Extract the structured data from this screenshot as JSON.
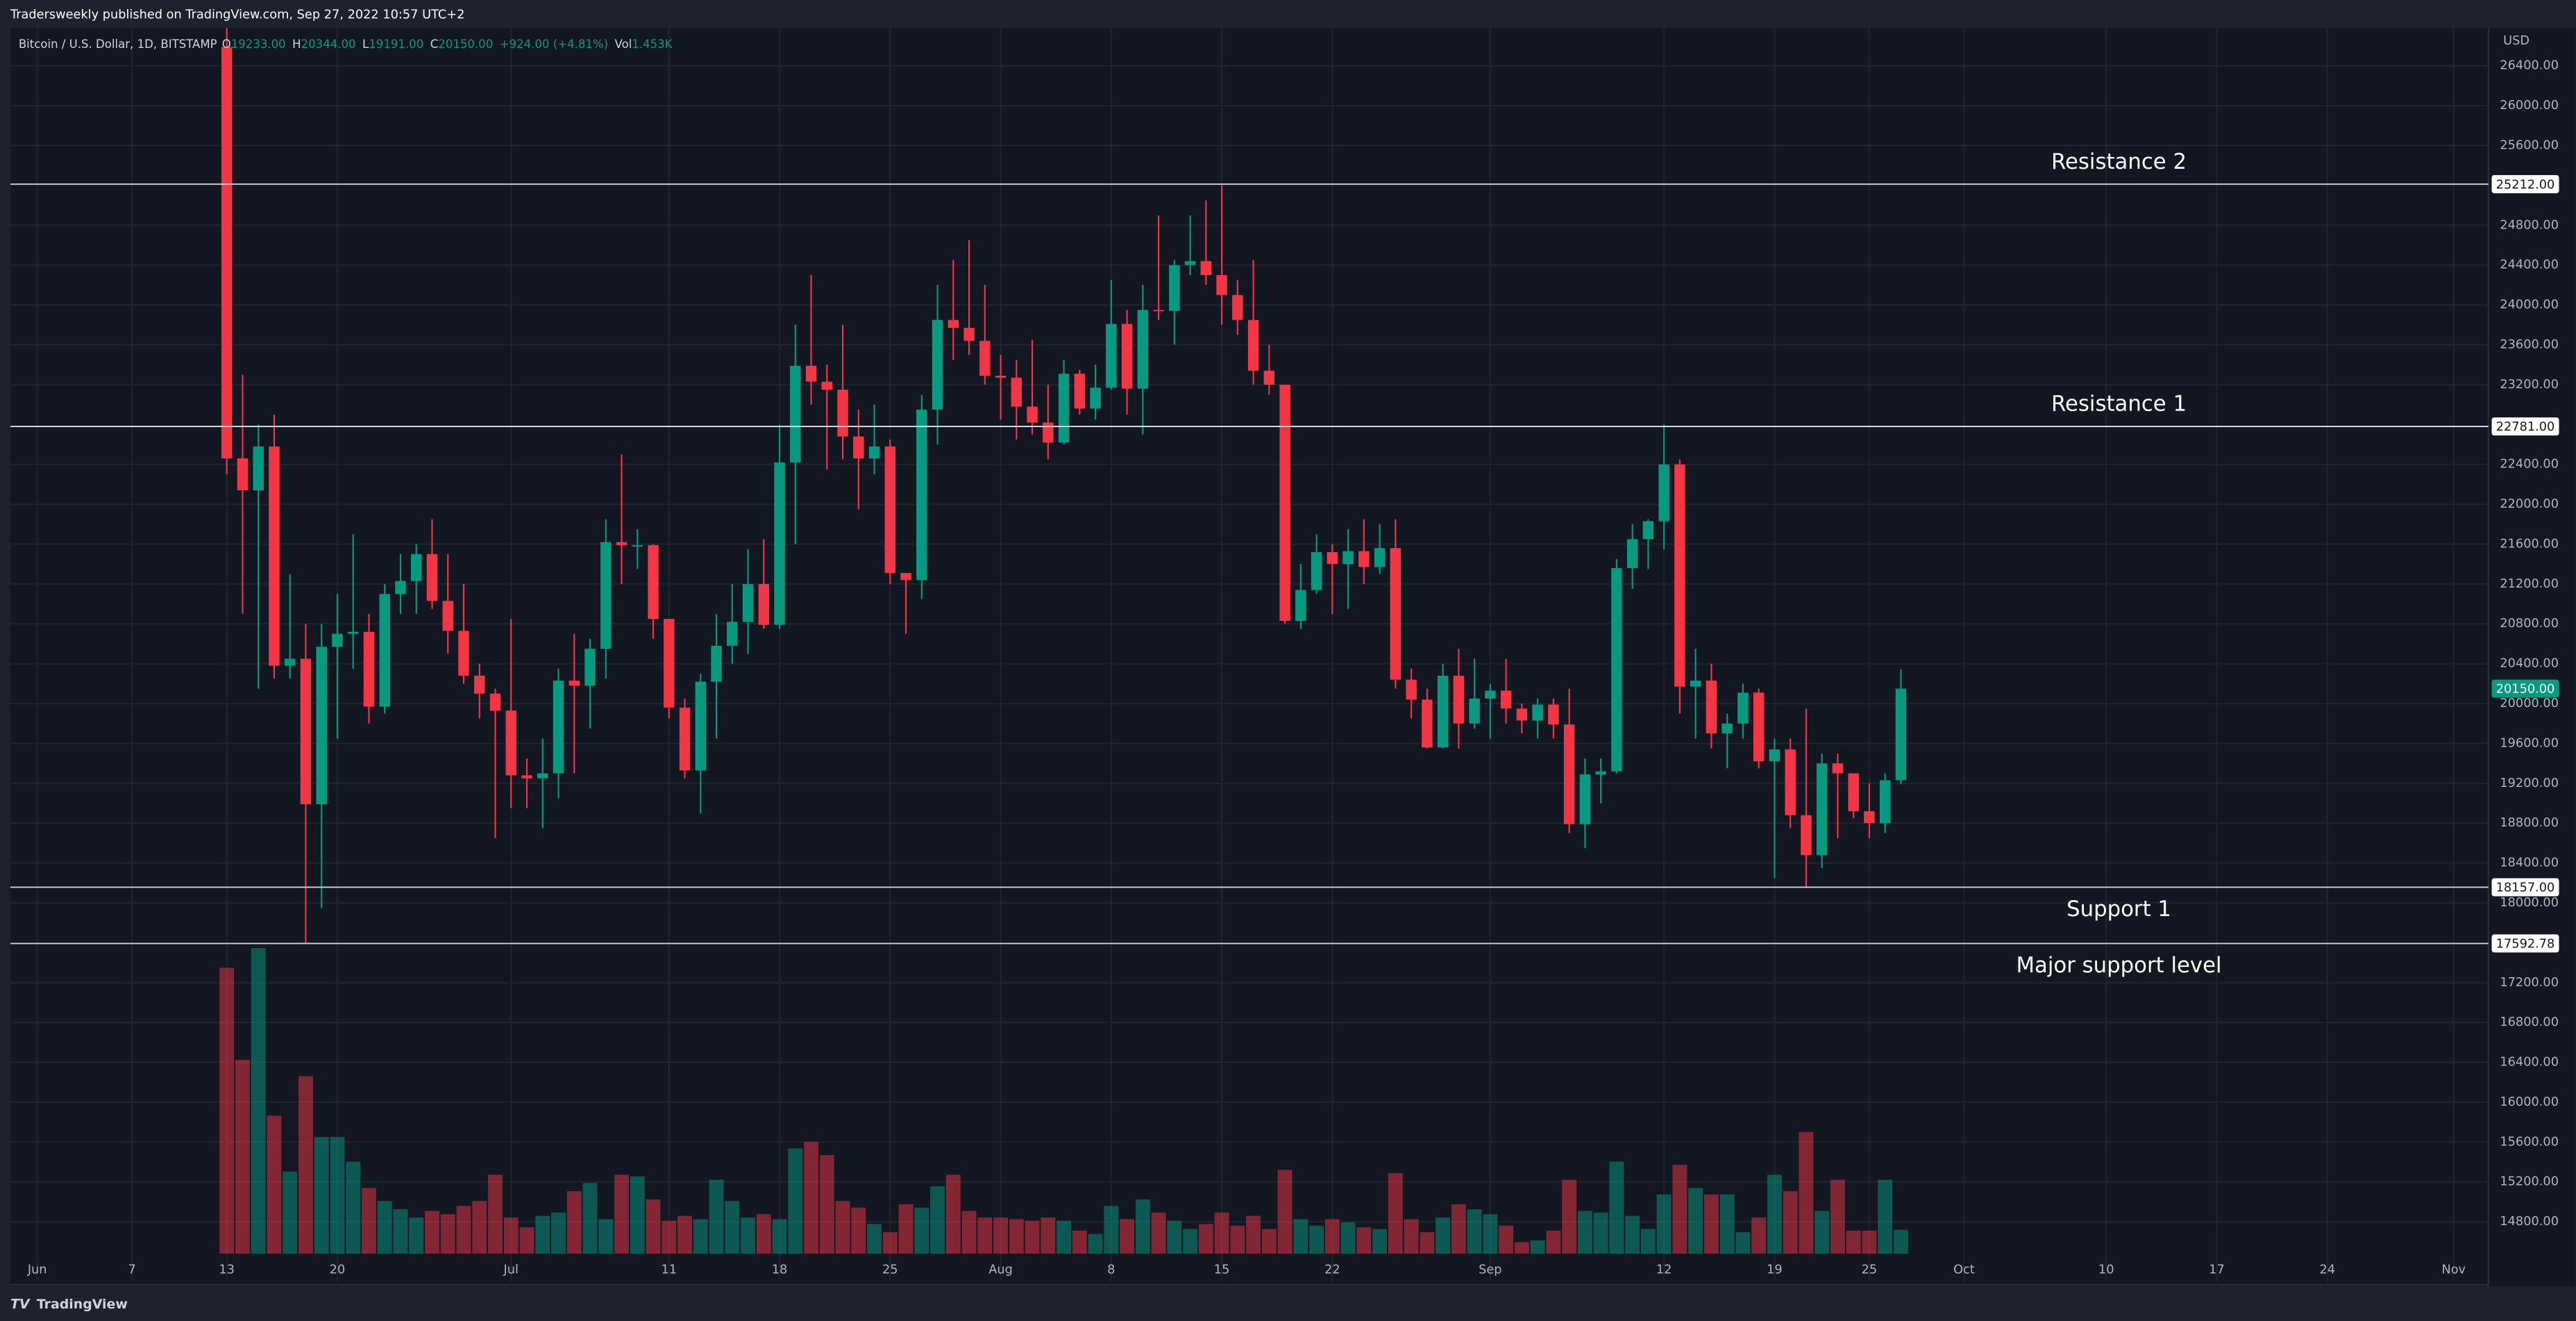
{
  "header": {
    "published": "Tradersweekly published on TradingView.com, Sep 27, 2022 10:57 UTC+2",
    "symbol": "Bitcoin / U.S. Dollar, 1D, BITSTAMP",
    "ohlc": [
      {
        "key": "O",
        "value": "19233.00"
      },
      {
        "key": "H",
        "value": "20344.00"
      },
      {
        "key": "L",
        "value": "19191.00"
      },
      {
        "key": "C",
        "value": "20150.00"
      }
    ],
    "change": "+924.00 (+4.81%)",
    "volume": {
      "key": "Vol",
      "value": "1.453K"
    }
  },
  "footer": {
    "brand": "TradingView"
  },
  "chart_data": {
    "type": "candlestick",
    "currency": "USD",
    "up_color": "#089981",
    "down_color": "#f23645",
    "open": [
      26590,
      22460,
      22140,
      22580,
      20380,
      20450,
      18990,
      20570,
      20700,
      20720,
      19970,
      21100,
      21230,
      21500,
      21030,
      20730,
      20280,
      20100,
      19930,
      19280,
      19250,
      19300,
      20230,
      20180,
      20550,
      21620,
      21590,
      21590,
      20850,
      19960,
      19330,
      20220,
      20580,
      20820,
      21200,
      20790,
      22420,
      23390,
      23230,
      23150,
      22680,
      22460,
      22580,
      21310,
      21240,
      22950,
      23850,
      23770,
      23640,
      23290,
      23270,
      22980,
      22820,
      22620,
      23310,
      22960,
      23170,
      23810,
      23160,
      23950,
      23940,
      24400,
      24440,
      24300,
      24100,
      23850,
      23340,
      23200,
      20830,
      21140,
      21520,
      21400,
      21530,
      21370,
      21560,
      20240,
      20040,
      19560,
      20280,
      19800,
      20050,
      20130,
      19950,
      19830,
      19990,
      19790,
      18790,
      19290,
      19320,
      21360,
      21650,
      21830,
      22400,
      20170,
      20230,
      19700,
      19800,
      20110,
      19420,
      19540,
      18880,
      18480,
      19400,
      19300,
      18920,
      18800,
      19233
    ],
    "high": [
      26900,
      23300,
      22800,
      22900,
      21300,
      20800,
      20800,
      21100,
      21700,
      20900,
      21200,
      21500,
      21600,
      21850,
      21500,
      21200,
      20400,
      20150,
      20850,
      19450,
      19650,
      20350,
      20700,
      20650,
      21850,
      22500,
      21750,
      21600,
      20850,
      20050,
      20300,
      20900,
      21200,
      21550,
      21650,
      22800,
      23800,
      24300,
      23400,
      23800,
      22950,
      23000,
      22650,
      21300,
      23100,
      24200,
      24450,
      24650,
      24200,
      23500,
      23450,
      23650,
      23200,
      23450,
      23350,
      23400,
      24250,
      23950,
      24200,
      24900,
      24450,
      24900,
      25050,
      25200,
      24250,
      24450,
      23600,
      23200,
      21400,
      21700,
      21600,
      21750,
      21850,
      21800,
      21850,
      20350,
      20150,
      20400,
      20550,
      20450,
      20200,
      20450,
      20000,
      20050,
      20050,
      20150,
      19450,
      19450,
      21450,
      21800,
      21850,
      22800,
      22450,
      20550,
      20400,
      19900,
      20200,
      20150,
      19650,
      19650,
      19950,
      19500,
      19500,
      19300,
      19200,
      19300,
      20344
    ],
    "low": [
      22300,
      20900,
      20150,
      20250,
      20250,
      17600,
      17950,
      19650,
      20350,
      19800,
      19900,
      20900,
      20900,
      20950,
      20500,
      20200,
      19850,
      18650,
      18950,
      18950,
      18750,
      19050,
      19300,
      19750,
      20250,
      21200,
      21350,
      20650,
      19850,
      19250,
      18900,
      19650,
      20400,
      20500,
      20750,
      20750,
      21600,
      23000,
      22350,
      22450,
      21950,
      22300,
      21200,
      20700,
      21050,
      22600,
      23450,
      23500,
      23200,
      22850,
      22650,
      22700,
      22450,
      22600,
      22900,
      22850,
      23150,
      22900,
      22700,
      23850,
      23600,
      24300,
      24200,
      23800,
      23700,
      23200,
      23100,
      20800,
      20750,
      21100,
      20900,
      20950,
      21200,
      21300,
      20150,
      19850,
      19550,
      19550,
      19550,
      19750,
      19650,
      19800,
      19700,
      19650,
      19650,
      18700,
      18550,
      19000,
      19300,
      21150,
      21350,
      21550,
      19900,
      19650,
      19550,
      19350,
      19650,
      19350,
      18250,
      18750,
      18150,
      18350,
      18650,
      18850,
      18650,
      18700,
      19191
    ],
    "close": [
      22460,
      22140,
      22580,
      20380,
      20450,
      18990,
      20570,
      20700,
      20720,
      19970,
      21100,
      21230,
      21500,
      21030,
      20730,
      20280,
      20100,
      19930,
      19280,
      19250,
      19300,
      20230,
      20180,
      20550,
      21620,
      21590,
      21590,
      20850,
      19960,
      19330,
      20220,
      20580,
      20820,
      21200,
      20790,
      22420,
      23390,
      23230,
      23150,
      22680,
      22460,
      22580,
      21310,
      21240,
      22950,
      23850,
      23770,
      23640,
      23290,
      23270,
      22980,
      22820,
      22620,
      23310,
      22960,
      23170,
      23810,
      23160,
      23950,
      23940,
      24400,
      24440,
      24300,
      24100,
      23850,
      23340,
      23200,
      20830,
      21140,
      21520,
      21400,
      21530,
      21370,
      21560,
      20240,
      20040,
      19560,
      20280,
      19800,
      20050,
      20130,
      19950,
      19830,
      19990,
      19790,
      18790,
      19290,
      19320,
      21360,
      21650,
      21830,
      22400,
      20170,
      20230,
      19700,
      19800,
      20110,
      19420,
      19540,
      18880,
      18480,
      19400,
      19300,
      18920,
      18800,
      19230,
      20150
    ],
    "close_label": "20150.00",
    "volume": [
      17.4,
      11.8,
      18.6,
      8.4,
      5.0,
      10.8,
      7.1,
      7.1,
      5.6,
      4.0,
      3.2,
      2.7,
      2.2,
      2.6,
      2.4,
      2.9,
      3.2,
      4.8,
      2.2,
      1.6,
      2.3,
      2.5,
      3.8,
      4.3,
      2.1,
      4.8,
      4.7,
      3.3,
      2.0,
      2.3,
      2.1,
      4.5,
      3.2,
      2.2,
      2.4,
      2.1,
      6.4,
      6.8,
      6.0,
      3.2,
      2.8,
      1.8,
      1.3,
      3.0,
      2.8,
      4.1,
      4.8,
      2.6,
      2.2,
      2.2,
      2.1,
      2.0,
      2.2,
      2.0,
      1.4,
      1.2,
      2.9,
      2.1,
      3.3,
      2.5,
      2.0,
      1.5,
      1.8,
      2.5,
      1.7,
      2.3,
      1.5,
      5.1,
      2.1,
      1.7,
      2.1,
      1.9,
      1.6,
      1.5,
      4.9,
      2.1,
      1.3,
      2.2,
      3.0,
      2.7,
      2.4,
      1.7,
      0.7,
      0.8,
      1.4,
      4.5,
      2.6,
      2.5,
      5.6,
      2.3,
      1.5,
      3.6,
      5.4,
      4.0,
      3.6,
      3.6,
      1.3,
      2.2,
      4.8,
      3.8,
      7.4,
      2.6,
      4.5,
      1.4,
      1.4,
      4.5,
      1.453
    ],
    "levels": [
      {
        "name": "Resistance 2",
        "value": 25212,
        "label": "25212.00"
      },
      {
        "name": "Resistance 1",
        "value": 22781,
        "label": "22781.00"
      },
      {
        "name": "Support 1",
        "value": 18157,
        "label": "18157.00"
      },
      {
        "name": "Major support level",
        "value": 17592.78,
        "label": "17592.78"
      }
    ],
    "xlim": [
      -13.7,
      143.2
    ],
    "xticks": [
      {
        "value": -12,
        "label": "Jun"
      },
      {
        "value": -6,
        "label": "7"
      },
      {
        "value": 0,
        "label": "13"
      },
      {
        "value": 7,
        "label": "20"
      },
      {
        "value": 18,
        "label": "Jul"
      },
      {
        "value": 28,
        "label": "11"
      },
      {
        "value": 35,
        "label": "18"
      },
      {
        "value": 42,
        "label": "25"
      },
      {
        "value": 49,
        "label": "Aug"
      },
      {
        "value": 56,
        "label": "8"
      },
      {
        "value": 63,
        "label": "15"
      },
      {
        "value": 70,
        "label": "22"
      },
      {
        "value": 80,
        "label": "Sep"
      },
      {
        "value": 91,
        "label": "12"
      },
      {
        "value": 98,
        "label": "19"
      },
      {
        "value": 104,
        "label": "25"
      },
      {
        "value": 110,
        "label": "Oct"
      },
      {
        "value": 119,
        "label": "10"
      },
      {
        "value": 126,
        "label": "17"
      },
      {
        "value": 133,
        "label": "24"
      },
      {
        "value": 141,
        "label": "Nov"
      }
    ],
    "ylim": [
      14200,
      26780
    ],
    "yticks": [
      {
        "value": 26400,
        "label": "26400.00"
      },
      {
        "value": 26000,
        "label": "26000.00"
      },
      {
        "value": 25600,
        "label": "25600.00"
      },
      {
        "value": 24800,
        "label": "24800.00"
      },
      {
        "value": 24400,
        "label": "24400.00"
      },
      {
        "value": 24000,
        "label": "24000.00"
      },
      {
        "value": 23600,
        "label": "23600.00"
      },
      {
        "value": 23200,
        "label": "23200.00"
      },
      {
        "value": 22400,
        "label": "22400.00"
      },
      {
        "value": 22000,
        "label": "22000.00"
      },
      {
        "value": 21600,
        "label": "21600.00"
      },
      {
        "value": 21200,
        "label": "21200.00"
      },
      {
        "value": 20800,
        "label": "20800.00"
      },
      {
        "value": 20400,
        "label": "20400.00"
      },
      {
        "value": 20000,
        "label": "20000.00"
      },
      {
        "value": 19600,
        "label": "19600.00"
      },
      {
        "value": 19200,
        "label": "19200.00"
      },
      {
        "value": 18800,
        "label": "18800.00"
      },
      {
        "value": 18400,
        "label": "18400.00"
      },
      {
        "value": 18000,
        "label": "18000.00"
      },
      {
        "value": 17200,
        "label": "17200.00"
      },
      {
        "value": 16800,
        "label": "16800.00"
      },
      {
        "value": 16400,
        "label": "16400.00"
      },
      {
        "value": 16000,
        "label": "16000.00"
      },
      {
        "value": 15600,
        "label": "15600.00"
      },
      {
        "value": 15200,
        "label": "15200.00"
      },
      {
        "value": 14800,
        "label": "14800.00"
      }
    ],
    "grid": true
  }
}
